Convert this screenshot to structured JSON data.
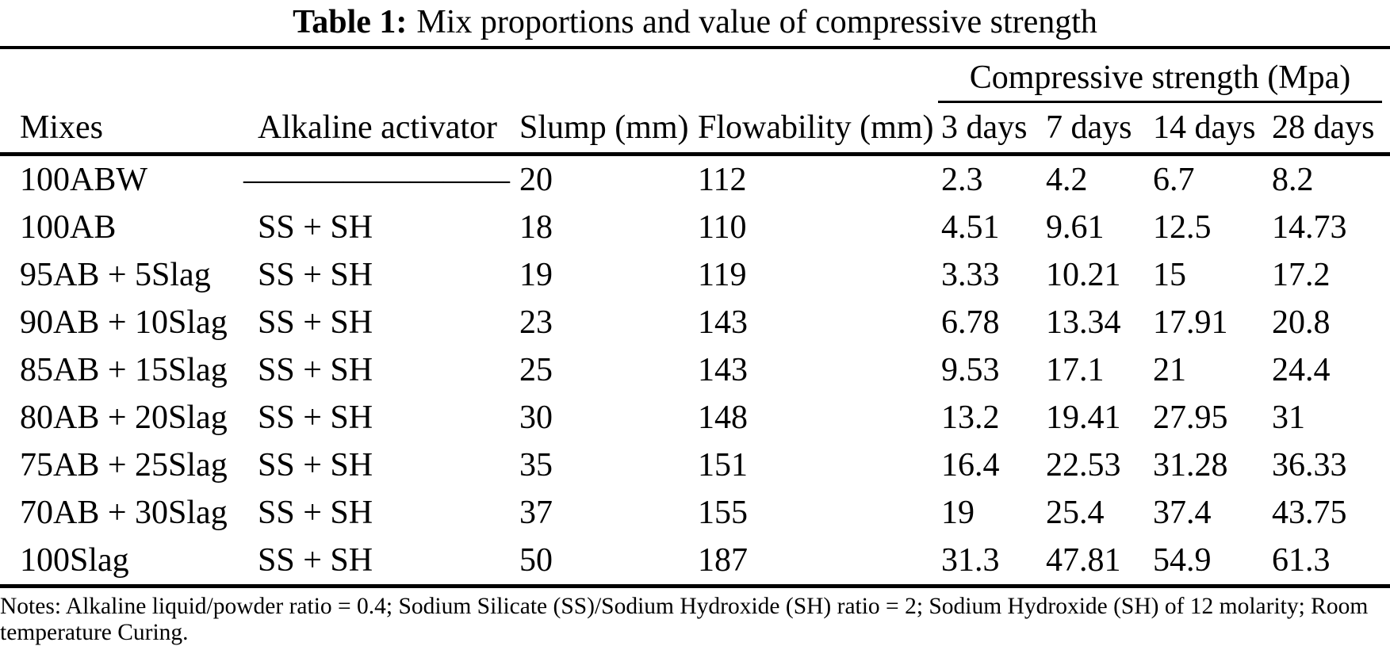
{
  "page": {
    "background_color": "#ffffff",
    "ink_color": "#000000"
  },
  "title": {
    "label": "Table 1:",
    "text": "Mix proportions and value of compressive strength"
  },
  "table": {
    "group_header": "Compressive strength (Mpa)",
    "columns": [
      "Mixes",
      "Alkaline activator",
      "Slump (mm)",
      "Flowability (mm)",
      "3 days",
      "7 days",
      "14 days",
      "28 days"
    ],
    "rows": [
      [
        "100ABW",
        "————————",
        "20",
        "112",
        "2.3",
        "4.2",
        "6.7",
        "8.2"
      ],
      [
        "100AB",
        "SS + SH",
        "18",
        "110",
        "4.51",
        "9.61",
        "12.5",
        "14.73"
      ],
      [
        "95AB + 5Slag",
        "SS + SH",
        "19",
        "119",
        "3.33",
        "10.21",
        "15",
        "17.2"
      ],
      [
        "90AB + 10Slag",
        "SS + SH",
        "23",
        "143",
        "6.78",
        "13.34",
        "17.91",
        "20.8"
      ],
      [
        "85AB + 15Slag",
        "SS + SH",
        "25",
        "143",
        "9.53",
        "17.1",
        "21",
        "24.4"
      ],
      [
        "80AB + 20Slag",
        "SS + SH",
        "30",
        "148",
        "13.2",
        "19.41",
        "27.95",
        "31"
      ],
      [
        "75AB + 25Slag",
        "SS + SH",
        "35",
        "151",
        "16.4",
        "22.53",
        "31.28",
        "36.33"
      ],
      [
        "70AB + 30Slag",
        "SS + SH",
        "37",
        "155",
        "19",
        "25.4",
        "37.4",
        "43.75"
      ],
      [
        "100Slag",
        "SS + SH",
        "50",
        "187",
        "31.3",
        "47.81",
        "54.9",
        "61.3"
      ]
    ]
  },
  "chart_data": {
    "type": "table",
    "title": "Table 1: Mix proportions and value of compressive strength",
    "group_header": "Compressive strength (Mpa)",
    "columns": [
      "Mixes",
      "Alkaline activator",
      "Slump (mm)",
      "Flowability (mm)",
      "3 days",
      "7 days",
      "14 days",
      "28 days"
    ],
    "rows": [
      [
        "100ABW",
        "—",
        20,
        112,
        2.3,
        4.2,
        6.7,
        8.2
      ],
      [
        "100AB",
        "SS + SH",
        18,
        110,
        4.51,
        9.61,
        12.5,
        14.73
      ],
      [
        "95AB + 5Slag",
        "SS + SH",
        19,
        119,
        3.33,
        10.21,
        15,
        17.2
      ],
      [
        "90AB + 10Slag",
        "SS + SH",
        23,
        143,
        6.78,
        13.34,
        17.91,
        20.8
      ],
      [
        "85AB + 15Slag",
        "SS + SH",
        25,
        143,
        9.53,
        17.1,
        21,
        24.4
      ],
      [
        "80AB + 20Slag",
        "SS + SH",
        30,
        148,
        13.2,
        19.41,
        27.95,
        31
      ],
      [
        "75AB + 25Slag",
        "SS + SH",
        35,
        151,
        16.4,
        22.53,
        31.28,
        36.33
      ],
      [
        "70AB + 30Slag",
        "SS + SH",
        37,
        155,
        19,
        25.4,
        37.4,
        43.75
      ],
      [
        "100Slag",
        "SS + SH",
        50,
        187,
        31.3,
        47.81,
        54.9,
        61.3
      ]
    ]
  },
  "notes": "Notes: Alkaline liquid/powder ratio = 0.4; Sodium Silicate (SS)/Sodium Hydroxide (SH) ratio = 2; Sodium Hydroxide (SH) of 12 molarity; Room temperature Curing."
}
